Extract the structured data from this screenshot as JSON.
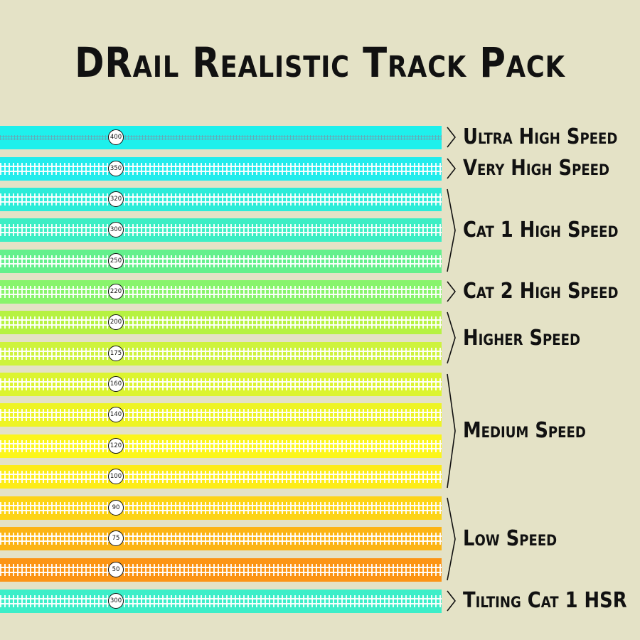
{
  "title": "DRail Realistic Track Pack",
  "tracks": [
    {
      "speed": "400",
      "color": "#1ef0ec",
      "style": "fine"
    },
    {
      "speed": "350",
      "color": "#22ecec",
      "style": "normal"
    },
    {
      "speed": "320",
      "color": "#2cecd8",
      "style": "normal"
    },
    {
      "speed": "300",
      "color": "#3ceec4",
      "style": "normal"
    },
    {
      "speed": "250",
      "color": "#64f08c",
      "style": "normal"
    },
    {
      "speed": "220",
      "color": "#88f46c",
      "style": "normal"
    },
    {
      "speed": "200",
      "color": "#b6f242",
      "style": "normal"
    },
    {
      "speed": "175",
      "color": "#cef33c",
      "style": "normal"
    },
    {
      "speed": "160",
      "color": "#dcf430",
      "style": "normal"
    },
    {
      "speed": "140",
      "color": "#eef424",
      "style": "normal"
    },
    {
      "speed": "120",
      "color": "#fcf61a",
      "style": "normal"
    },
    {
      "speed": "100",
      "color": "#fdec18",
      "style": "normal"
    },
    {
      "speed": "90",
      "color": "#fdd416",
      "style": "normal"
    },
    {
      "speed": "75",
      "color": "#fcb414",
      "style": "normal"
    },
    {
      "speed": "50",
      "color": "#fc9414",
      "style": "normal"
    },
    {
      "speed": "300",
      "color": "#3ceec8",
      "style": "normal"
    }
  ],
  "groups": [
    {
      "label": "Ultra High Speed"
    },
    {
      "label": "Very High Speed"
    },
    {
      "label": "Cat 1 High Speed"
    },
    {
      "label": "Cat 2 High Speed"
    },
    {
      "label": "Higher Speed"
    },
    {
      "label": "Medium Speed"
    },
    {
      "label": "Low Speed"
    },
    {
      "label": "Tilting Cat 1 HSR"
    }
  ]
}
